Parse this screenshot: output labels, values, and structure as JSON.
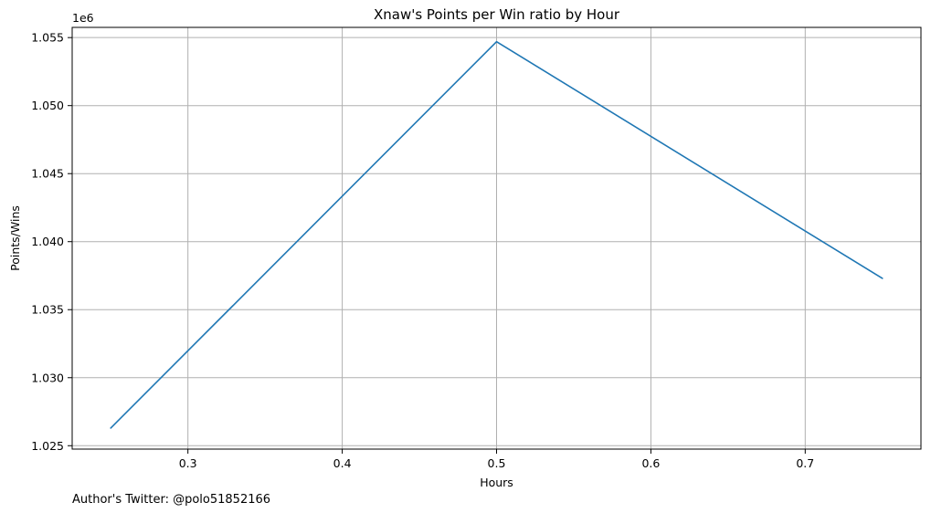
{
  "chart_data": {
    "type": "line",
    "title": "Xnaw's Points per Win ratio by Hour",
    "xlabel": "Hours",
    "ylabel": "Points/Wins",
    "offset_text": "1e6",
    "y_multiplier": 1000000,
    "xlim": [
      0.225,
      0.775
    ],
    "ylim": [
      1.02475,
      1.05575
    ],
    "x_ticks": [
      0.3,
      0.4,
      0.5,
      0.6,
      0.7
    ],
    "x_tick_labels": [
      "0.3",
      "0.4",
      "0.5",
      "0.6",
      "0.7"
    ],
    "y_ticks": [
      1.025,
      1.03,
      1.035,
      1.04,
      1.045,
      1.05,
      1.055
    ],
    "y_tick_labels": [
      "1.025",
      "1.030",
      "1.035",
      "1.040",
      "1.045",
      "1.050",
      "1.055"
    ],
    "grid": true,
    "legend": "none",
    "series": [
      {
        "color": "#1f77b4",
        "x": [
          0.25,
          0.5,
          0.75
        ],
        "y": [
          1.0263,
          1.0547,
          1.0373
        ]
      }
    ]
  },
  "footer": {
    "credit": "Author's Twitter: @polo51852166"
  }
}
